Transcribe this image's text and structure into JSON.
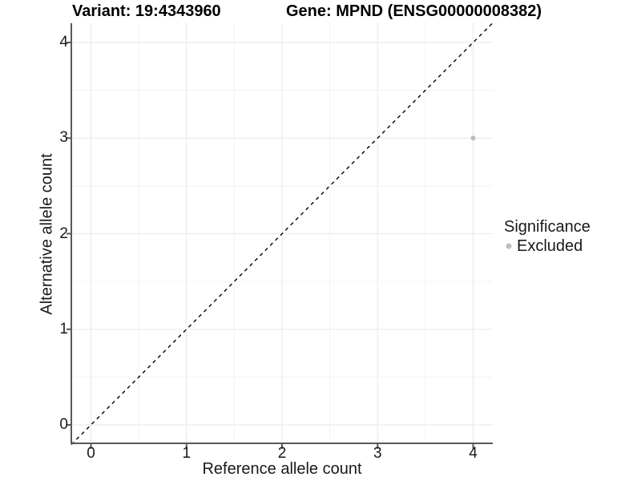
{
  "figure": {
    "title_left": "Variant: 19:4343960",
    "title_right": "Gene: MPND (ENSG00000008382)"
  },
  "axes": {
    "x": {
      "label": "Reference allele count",
      "ticks": [
        "0",
        "1",
        "2",
        "3",
        "4"
      ]
    },
    "y": {
      "label": "Alternative allele count",
      "ticks": [
        "0",
        "1",
        "2",
        "3",
        "4"
      ]
    }
  },
  "legend": {
    "title": "Significance",
    "items": [
      {
        "label": "Excluded",
        "color": "#bdbdbd",
        "marker": "circle-icon"
      }
    ]
  },
  "colors": {
    "point": "#bdbdbd",
    "grid_major": "#e7e7e7",
    "grid_minor": "#f2f2f2",
    "axis_line": "#595959",
    "identity_line": "#000000",
    "background": "#ffffff",
    "title_text": "#000000",
    "body_text": "#1a1a1a"
  },
  "chart_data": {
    "type": "scatter",
    "title": "Variant: 19:4343960 | Gene: MPND (ENSG00000008382)",
    "xlabel": "Reference allele count",
    "ylabel": "Alternative allele count",
    "xlim": [
      -0.2,
      4.2
    ],
    "ylim": [
      -0.2,
      4.2
    ],
    "x_ticks": [
      0,
      1,
      2,
      3,
      4
    ],
    "y_ticks": [
      0,
      1,
      2,
      3,
      4
    ],
    "grid": "major gridlines at integers, minor gridlines at 0.5 steps, light gray on white",
    "series": [
      {
        "name": "Excluded",
        "color": "#bdbdbd",
        "points": [
          [
            4,
            3
          ]
        ]
      }
    ],
    "annotations": [
      {
        "type": "abline",
        "label": "identity line y = x",
        "style": "dashed",
        "color": "#000000"
      }
    ],
    "legend": {
      "title": "Significance",
      "entries": [
        "Excluded"
      ],
      "position": "right"
    }
  }
}
